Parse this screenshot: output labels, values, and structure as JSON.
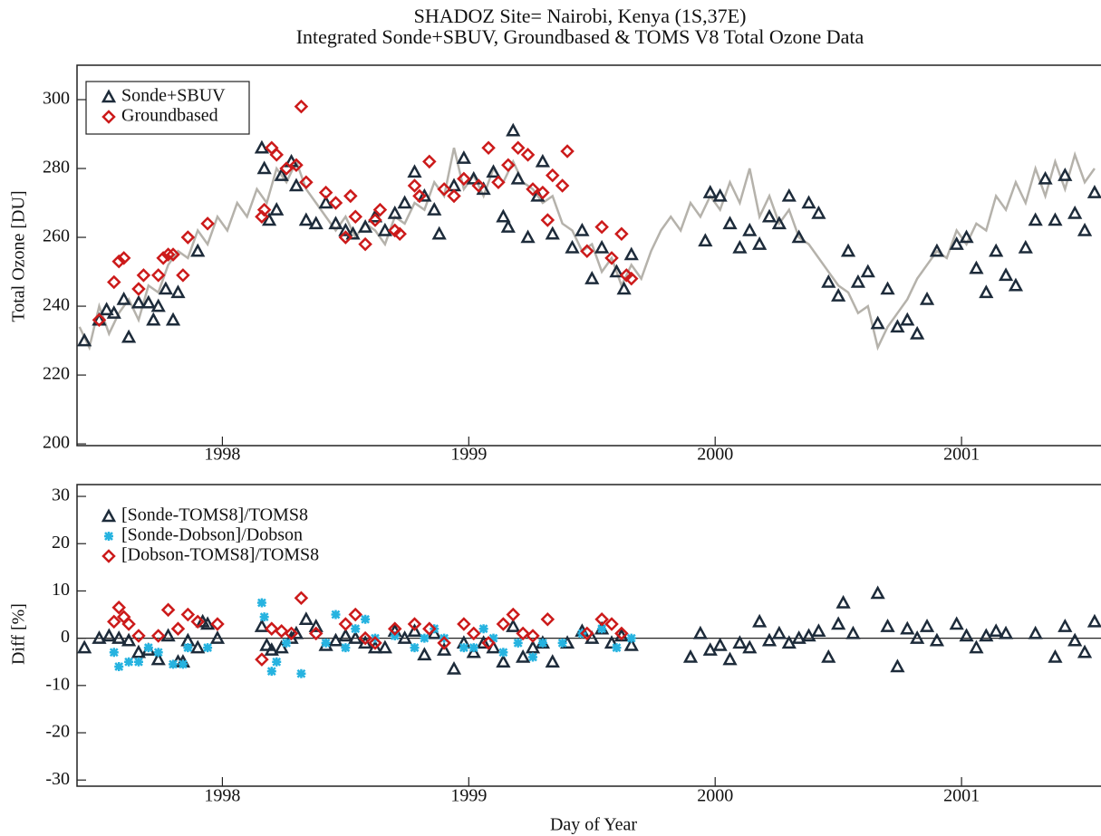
{
  "chart_data": [
    {
      "type": "scatter",
      "title": "SHADOZ Site= Nairobi, Kenya (1S,37E)",
      "subtitle": "Integrated Sonde+SBUV, Groundbased & TOMS V8 Total Ozone Data",
      "ylabel": "Total Ozone [DU]",
      "xlim": [
        1997.41,
        2001.566
      ],
      "xticks": [
        1998,
        1999,
        2000,
        2001
      ],
      "ylim": [
        199.5,
        310
      ],
      "yticks": [
        200,
        220,
        240,
        260,
        280,
        300
      ],
      "legend": "upper left",
      "legend_frame": true,
      "zero_line": false,
      "series": [
        {
          "marker": "line",
          "color": "#b5b2ab",
          "x": [
            1997.42,
            1997.46,
            1997.5,
            1997.54,
            1997.58,
            1997.62,
            1997.66,
            1997.7,
            1997.74,
            1997.78,
            1997.82,
            1997.86,
            1997.9,
            1997.94,
            1997.98,
            1998.02,
            1998.06,
            1998.1,
            1998.14,
            1998.18,
            1998.22,
            1998.26,
            1998.3,
            1998.34,
            1998.38,
            1998.42,
            1998.46,
            1998.5,
            1998.54,
            1998.58,
            1998.62,
            1998.66,
            1998.7,
            1998.74,
            1998.78,
            1998.82,
            1998.86,
            1998.9,
            1998.94,
            1998.98,
            1999.02,
            1999.06,
            1999.1,
            1999.14,
            1999.18,
            1999.22,
            1999.26,
            1999.3,
            1999.34,
            1999.38,
            1999.42,
            1999.46,
            1999.5,
            1999.54,
            1999.58,
            1999.62,
            1999.66,
            1999.7,
            1999.74,
            1999.78,
            1999.82,
            1999.86,
            1999.9,
            1999.94,
            1999.98,
            2000.02,
            2000.06,
            2000.1,
            2000.14,
            2000.18,
            2000.22,
            2000.26,
            2000.3,
            2000.34,
            2000.38,
            2000.42,
            2000.46,
            2000.5,
            2000.54,
            2000.58,
            2000.62,
            2000.66,
            2000.7,
            2000.74,
            2000.78,
            2000.82,
            2000.86,
            2000.9,
            2000.94,
            2000.98,
            2001.02,
            2001.06,
            2001.1,
            2001.14,
            2001.18,
            2001.22,
            2001.26,
            2001.3,
            2001.34,
            2001.38,
            2001.42,
            2001.46,
            2001.5,
            2001.54
          ],
          "values": [
            234,
            228,
            240,
            232,
            238,
            242,
            236,
            246,
            244,
            252,
            256,
            254,
            262,
            258,
            266,
            262,
            270,
            266,
            274,
            270,
            280,
            276,
            282,
            274,
            270,
            266,
            262,
            266,
            260,
            264,
            262,
            258,
            266,
            264,
            270,
            268,
            276,
            272,
            286,
            274,
            278,
            272,
            280,
            276,
            282,
            276,
            274,
            270,
            272,
            264,
            262,
            256,
            258,
            250,
            254,
            246,
            252,
            248,
            256,
            262,
            266,
            262,
            270,
            266,
            272,
            268,
            276,
            270,
            280,
            266,
            272,
            264,
            268,
            260,
            258,
            254,
            250,
            246,
            244,
            238,
            240,
            228,
            234,
            238,
            242,
            248,
            252,
            256,
            254,
            262,
            258,
            264,
            262,
            272,
            268,
            276,
            270,
            280,
            272,
            282,
            274,
            284,
            276,
            280
          ]
        },
        {
          "name": "Sonde+SBUV",
          "marker": "triangle",
          "color": "#1d2b3a",
          "x": [
            1997.44,
            1997.5,
            1997.53,
            1997.56,
            1997.6,
            1997.62,
            1997.66,
            1997.7,
            1997.72,
            1997.74,
            1997.77,
            1997.8,
            1997.82,
            1997.9,
            1998.16,
            1998.17,
            1998.19,
            1998.22,
            1998.24,
            1998.28,
            1998.3,
            1998.34,
            1998.38,
            1998.42,
            1998.46,
            1998.5,
            1998.53,
            1998.58,
            1998.62,
            1998.66,
            1998.7,
            1998.74,
            1998.78,
            1998.82,
            1998.86,
            1998.88,
            1998.94,
            1998.98,
            1999.02,
            1999.06,
            1999.1,
            1999.14,
            1999.16,
            1999.18,
            1999.2,
            1999.24,
            1999.28,
            1999.3,
            1999.34,
            1999.42,
            1999.46,
            1999.5,
            1999.54,
            1999.6,
            1999.63,
            1999.66,
            1999.96,
            1999.98,
            2000.02,
            2000.06,
            2000.1,
            2000.14,
            2000.18,
            2000.22,
            2000.26,
            2000.3,
            2000.34,
            2000.38,
            2000.42,
            2000.46,
            2000.5,
            2000.54,
            2000.58,
            2000.62,
            2000.66,
            2000.7,
            2000.74,
            2000.78,
            2000.82,
            2000.86,
            2000.9,
            2000.98,
            2001.02,
            2001.06,
            2001.1,
            2001.14,
            2001.18,
            2001.22,
            2001.26,
            2001.3,
            2001.34,
            2001.38,
            2001.42,
            2001.46,
            2001.5,
            2001.54
          ],
          "values": [
            230,
            236,
            239,
            238,
            242,
            231,
            241,
            241,
            236,
            240,
            245,
            236,
            244,
            256,
            286,
            280,
            265,
            268,
            278,
            282,
            275,
            265,
            264,
            270,
            264,
            262,
            261,
            263,
            266,
            262,
            267,
            270,
            279,
            272,
            268,
            261,
            275,
            283,
            277,
            274,
            279,
            266,
            263,
            291,
            277,
            260,
            272,
            282,
            261,
            257,
            262,
            248,
            257,
            250,
            245,
            255,
            259,
            273,
            272,
            264,
            257,
            262,
            258,
            266,
            264,
            272,
            260,
            270,
            267,
            247,
            243,
            256,
            247,
            250,
            235,
            245,
            234,
            236,
            232,
            242,
            256,
            258,
            260,
            251,
            244,
            256,
            249,
            246,
            257,
            265,
            277,
            265,
            278,
            267,
            262,
            273
          ]
        },
        {
          "name": "Groundbased",
          "marker": "diamond",
          "color": "#cc1a1a",
          "x": [
            1997.5,
            1997.56,
            1997.58,
            1997.6,
            1997.66,
            1997.68,
            1997.74,
            1997.76,
            1997.78,
            1997.8,
            1997.84,
            1997.86,
            1997.94,
            1998.16,
            1998.17,
            1998.2,
            1998.22,
            1998.26,
            1998.3,
            1998.32,
            1998.34,
            1998.42,
            1998.46,
            1998.5,
            1998.52,
            1998.54,
            1998.58,
            1998.62,
            1998.64,
            1998.7,
            1998.72,
            1998.78,
            1998.8,
            1998.84,
            1998.9,
            1998.94,
            1998.98,
            1999.04,
            1999.08,
            1999.12,
            1999.16,
            1999.2,
            1999.24,
            1999.26,
            1999.3,
            1999.32,
            1999.34,
            1999.38,
            1999.4,
            1999.48,
            1999.54,
            1999.58,
            1999.62,
            1999.64,
            1999.66
          ],
          "values": [
            236,
            247,
            253,
            254,
            245,
            249,
            249,
            254,
            255,
            255,
            249,
            260,
            264,
            266,
            268,
            286,
            284,
            280,
            281,
            298,
            276,
            273,
            270,
            260,
            272,
            266,
            258,
            265,
            268,
            262,
            261,
            275,
            272,
            282,
            274,
            272,
            277,
            275,
            286,
            276,
            281,
            286,
            284,
            274,
            273,
            265,
            278,
            275,
            285,
            256,
            263,
            254,
            261,
            249,
            248
          ]
        }
      ]
    },
    {
      "type": "scatter",
      "ylabel": "Diff [%]",
      "xlabel": "Day of Year",
      "xlim": [
        1997.41,
        2001.566
      ],
      "xticks": [
        1998,
        1999,
        2000,
        2001
      ],
      "ylim": [
        -31.3,
        32.5
      ],
      "yticks": [
        -30,
        -20,
        -10,
        0,
        10,
        20,
        30
      ],
      "legend": "upper left",
      "legend_frame": false,
      "zero_line": true,
      "series": [
        {
          "name": "[Sonde-TOMS8]/TOMS8",
          "marker": "triangle",
          "color": "#1d2b3a",
          "x": [
            1997.44,
            1997.5,
            1997.54,
            1997.58,
            1997.62,
            1997.66,
            1997.7,
            1997.74,
            1997.78,
            1997.82,
            1997.84,
            1997.86,
            1997.9,
            1997.92,
            1997.94,
            1997.98,
            1998.16,
            1998.18,
            1998.2,
            1998.24,
            1998.28,
            1998.3,
            1998.34,
            1998.38,
            1998.42,
            1998.46,
            1998.5,
            1998.54,
            1998.58,
            1998.62,
            1998.66,
            1998.7,
            1998.74,
            1998.78,
            1998.82,
            1998.86,
            1998.9,
            1998.94,
            1998.98,
            1999.02,
            1999.06,
            1999.1,
            1999.14,
            1999.18,
            1999.22,
            1999.26,
            1999.3,
            1999.34,
            1999.4,
            1999.46,
            1999.5,
            1999.54,
            1999.58,
            1999.62,
            1999.66,
            1999.9,
            1999.94,
            1999.98,
            2000.02,
            2000.06,
            2000.1,
            2000.14,
            2000.18,
            2000.22,
            2000.26,
            2000.3,
            2000.34,
            2000.38,
            2000.42,
            2000.46,
            2000.5,
            2000.52,
            2000.56,
            2000.66,
            2000.7,
            2000.74,
            2000.78,
            2000.82,
            2000.86,
            2000.9,
            2000.98,
            2001.02,
            2001.06,
            2001.1,
            2001.14,
            2001.18,
            2001.3,
            2001.38,
            2001.42,
            2001.46,
            2001.5,
            2001.54
          ],
          "values": [
            -2,
            0,
            0.5,
            0,
            -0.5,
            -3,
            -2.5,
            -4.5,
            0.5,
            -5,
            -5,
            -0.5,
            -2,
            3.5,
            3,
            0,
            2.5,
            -1.5,
            -2.5,
            -2,
            0,
            1,
            4,
            2.5,
            -1.5,
            -0.5,
            0.5,
            0,
            -1,
            -2,
            -2,
            1.5,
            0,
            1.5,
            -3.5,
            1,
            -2.5,
            -6.5,
            -1,
            -3,
            -1,
            -2,
            -5,
            2.5,
            -4,
            -2,
            -1,
            -5,
            -1,
            1.5,
            0,
            2,
            -1,
            0.5,
            -1.5,
            -4,
            1,
            -2.5,
            -1.5,
            -4.5,
            -1,
            -2,
            3.5,
            -0.5,
            1,
            -1,
            0,
            0.5,
            1.5,
            -4,
            3,
            7.5,
            1,
            9.5,
            2.5,
            -6,
            2,
            0,
            2.5,
            -0.5,
            3,
            0.5,
            -2,
            0.5,
            1.5,
            1,
            1,
            -4,
            2.5,
            -0.5,
            -3,
            3.5
          ]
        },
        {
          "name": "[Sonde-Dobson]/Dobson",
          "marker": "asterisk",
          "color": "#26b3e0",
          "x": [
            1997.56,
            1997.58,
            1997.62,
            1997.66,
            1997.7,
            1997.74,
            1997.8,
            1997.84,
            1997.86,
            1997.94,
            1998.16,
            1998.17,
            1998.2,
            1998.22,
            1998.26,
            1998.32,
            1998.42,
            1998.46,
            1998.5,
            1998.54,
            1998.58,
            1998.62,
            1998.7,
            1998.78,
            1998.82,
            1998.86,
            1998.9,
            1998.98,
            1999.02,
            1999.06,
            1999.1,
            1999.14,
            1999.2,
            1999.26,
            1999.3,
            1999.38,
            1999.46,
            1999.54,
            1999.6,
            1999.66
          ],
          "values": [
            -3,
            -6,
            -5,
            -5,
            -2,
            -3,
            -5.5,
            -5.5,
            -2,
            -2,
            7.5,
            4.5,
            -7,
            -5,
            -1,
            -7.5,
            -1,
            5,
            -2,
            2,
            4,
            0,
            0.5,
            -2,
            0,
            2,
            0,
            -2,
            -2,
            2,
            0,
            -3,
            -1,
            -4,
            -1,
            -1,
            1,
            2,
            -2,
            0
          ]
        },
        {
          "name": "[Dobson-TOMS8]/TOMS8",
          "marker": "diamond",
          "color": "#cc1a1a",
          "x": [
            1997.56,
            1997.58,
            1997.6,
            1997.62,
            1997.66,
            1997.74,
            1997.78,
            1997.82,
            1997.86,
            1997.9,
            1997.98,
            1998.16,
            1998.2,
            1998.24,
            1998.28,
            1998.32,
            1998.38,
            1998.5,
            1998.54,
            1998.58,
            1998.62,
            1998.7,
            1998.78,
            1998.84,
            1998.9,
            1998.98,
            1999.02,
            1999.08,
            1999.14,
            1999.18,
            1999.22,
            1999.26,
            1999.32,
            1999.48,
            1999.54,
            1999.58,
            1999.62
          ],
          "values": [
            3.5,
            6.5,
            4.5,
            3,
            0.5,
            0.5,
            6,
            2,
            5,
            3.5,
            3,
            -4.5,
            2,
            1.5,
            1,
            8.5,
            1,
            3,
            5,
            0,
            -1,
            2,
            3,
            2,
            -1,
            3,
            1,
            -1,
            3,
            5,
            1,
            0.5,
            4,
            1,
            4,
            3,
            1
          ]
        }
      ]
    }
  ]
}
